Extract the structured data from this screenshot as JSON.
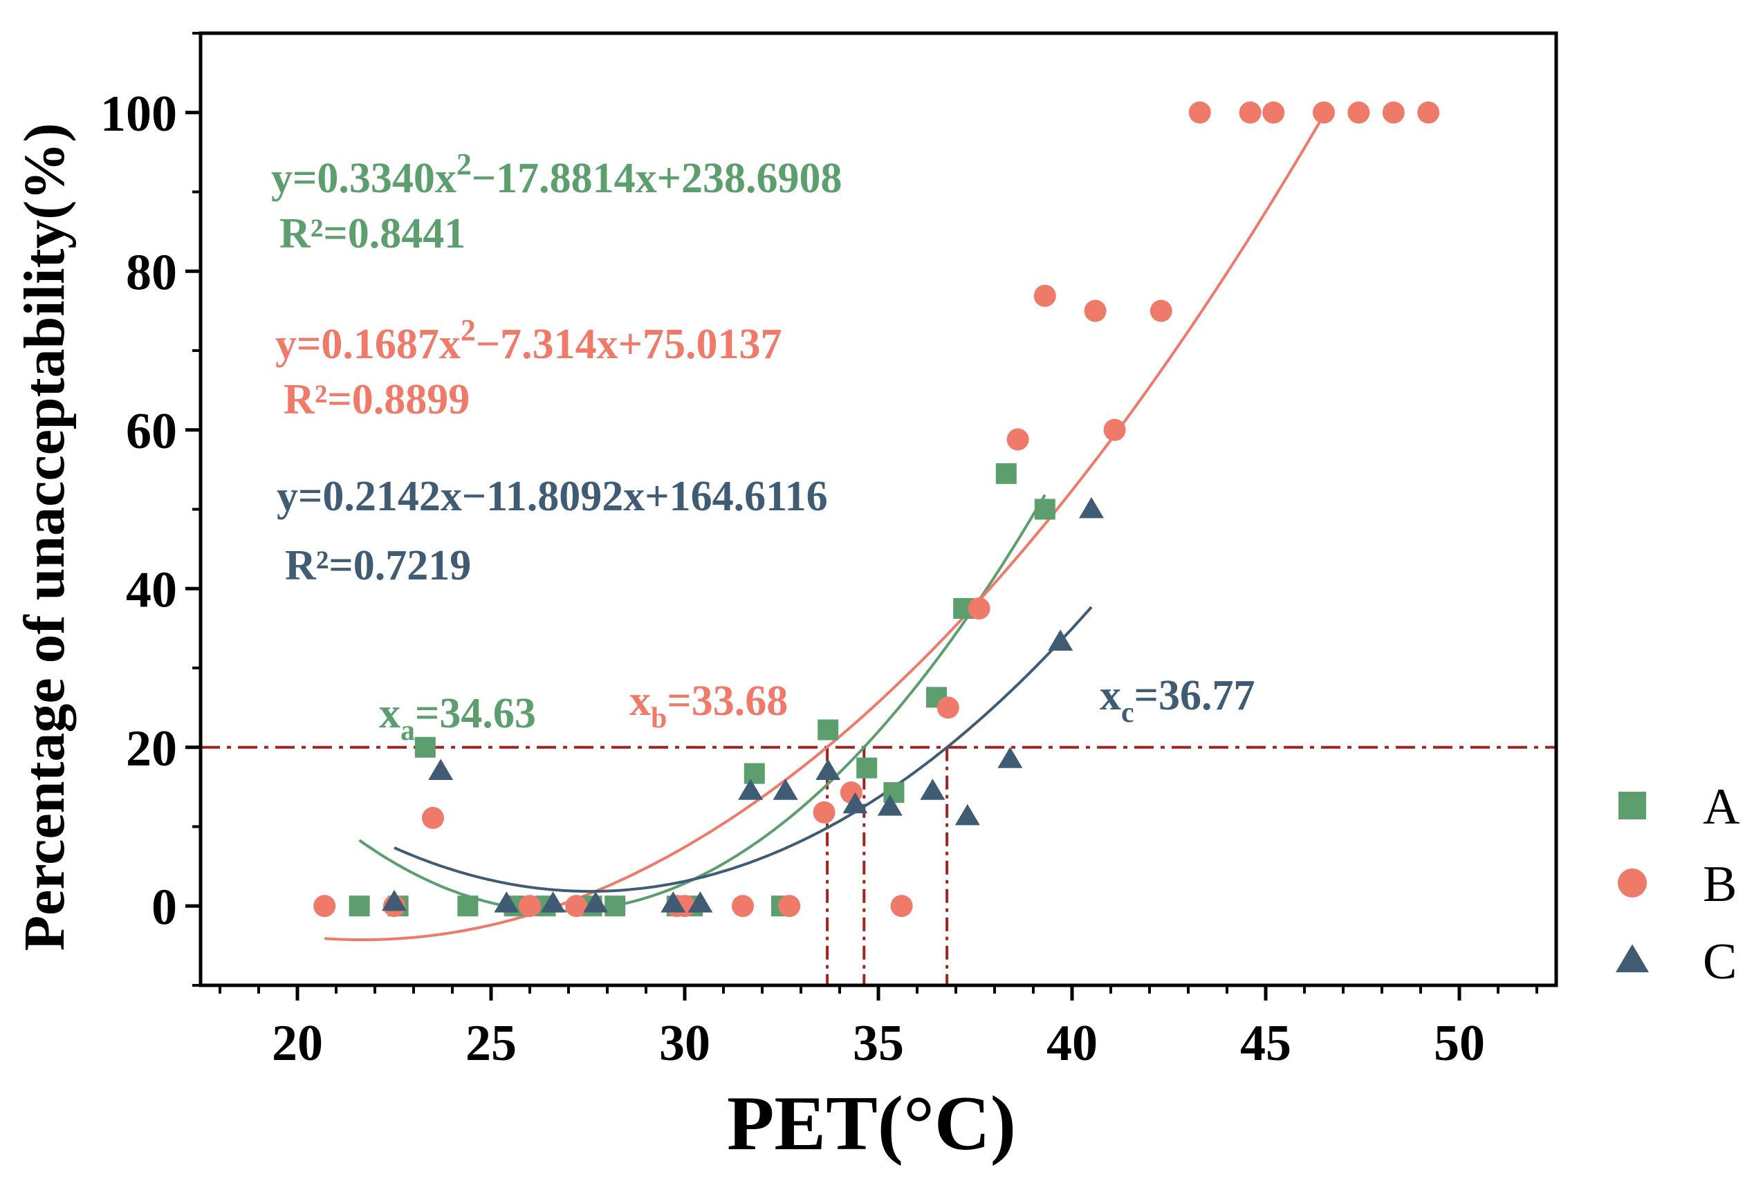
{
  "chart_data": {
    "type": "scatter",
    "title": "",
    "xlabel": "PET(°C)",
    "ylabel": "Percentage of unacceptability(%)",
    "xlim": [
      17.5,
      52.5
    ],
    "ylim": [
      -10,
      110
    ],
    "xticks": [
      20,
      25,
      30,
      35,
      40,
      45,
      50
    ],
    "xtick_labels": [
      "20",
      "25",
      "30",
      "35",
      "40",
      "45",
      "50"
    ],
    "yticks": [
      0,
      20,
      40,
      60,
      80,
      100
    ],
    "ytick_labels": [
      "0",
      "20",
      "40",
      "60",
      "80",
      "100"
    ],
    "threshold": {
      "y": 20,
      "color": "#a3231f",
      "style": "dash-dot"
    },
    "legend_position": "right",
    "series": [
      {
        "name": "A",
        "marker": "square",
        "color": "#5c9e6e",
        "points": [
          [
            21.6,
            0
          ],
          [
            22.6,
            0
          ],
          [
            23.3,
            20
          ],
          [
            24.4,
            0
          ],
          [
            25.6,
            0
          ],
          [
            26.4,
            0
          ],
          [
            27.6,
            0
          ],
          [
            28.2,
            0
          ],
          [
            29.8,
            0
          ],
          [
            30.2,
            0
          ],
          [
            31.8,
            16.7
          ],
          [
            32.5,
            0
          ],
          [
            33.7,
            22.2
          ],
          [
            34.7,
            17.4
          ],
          [
            35.4,
            14.3
          ],
          [
            36.5,
            26.3
          ],
          [
            37.2,
            37.5
          ],
          [
            38.3,
            54.5
          ],
          [
            39.3,
            50
          ]
        ],
        "fit": {
          "x_range": [
            21.6,
            39.3
          ],
          "coef": [
            238.6908,
            -17.8814,
            0.334
          ]
        },
        "equation": "y=0.3340x",
        "equation_sup": "2",
        "equation_rest": "−17.8814x+238.6908",
        "r2": "R²=0.8441",
        "threshold_label_main": "x",
        "threshold_label_sub": "a",
        "threshold_label_rest": "=34.63",
        "threshold_x": 34.63
      },
      {
        "name": "B",
        "marker": "circle",
        "color": "#f07a6a",
        "points": [
          [
            20.7,
            0
          ],
          [
            22.5,
            0
          ],
          [
            23.5,
            11.1
          ],
          [
            26.0,
            0
          ],
          [
            27.2,
            0
          ],
          [
            29.8,
            0
          ],
          [
            30.0,
            0
          ],
          [
            31.5,
            0
          ],
          [
            32.7,
            0
          ],
          [
            33.6,
            11.8
          ],
          [
            34.3,
            14.3
          ],
          [
            35.6,
            0
          ],
          [
            36.8,
            25
          ],
          [
            37.6,
            37.5
          ],
          [
            38.6,
            58.8
          ],
          [
            39.3,
            76.9
          ],
          [
            40.6,
            75
          ],
          [
            41.1,
            60
          ],
          [
            42.3,
            75
          ],
          [
            43.3,
            100
          ],
          [
            44.6,
            100
          ],
          [
            45.2,
            100
          ],
          [
            46.5,
            100
          ],
          [
            47.4,
            100
          ],
          [
            48.3,
            100
          ],
          [
            49.2,
            100
          ]
        ],
        "fit": {
          "x_range": [
            20.7,
            46.4
          ],
          "coef": [
            75.0137,
            -7.314,
            0.1687
          ]
        },
        "equation": "y=0.1687x",
        "equation_sup": "2",
        "equation_rest": "−7.314x+75.0137",
        "r2": "R²=0.8899",
        "threshold_label_main": "x",
        "threshold_label_sub": "b",
        "threshold_label_rest": "=33.68",
        "threshold_x": 33.68
      },
      {
        "name": "C",
        "marker": "triangle",
        "color": "#3f5c74",
        "points": [
          [
            22.5,
            0.5
          ],
          [
            23.7,
            17
          ],
          [
            25.4,
            0.3
          ],
          [
            26.6,
            0.3
          ],
          [
            27.7,
            0.3
          ],
          [
            29.7,
            0.3
          ],
          [
            30.4,
            0.3
          ],
          [
            31.7,
            14.5
          ],
          [
            32.6,
            14.5
          ],
          [
            33.7,
            17
          ],
          [
            34.4,
            12.8
          ],
          [
            35.3,
            12.5
          ],
          [
            36.4,
            14.5
          ],
          [
            37.3,
            11.3
          ],
          [
            38.4,
            18.5
          ],
          [
            39.7,
            33.3
          ],
          [
            40.5,
            50
          ]
        ],
        "fit": {
          "x_range": [
            22.5,
            40.5
          ],
          "coef": [
            164.6116,
            -11.8092,
            0.2142
          ]
        },
        "equation": "y=0.2142x−11.8092x+164.6116",
        "r2": "R²=0.7219",
        "threshold_label_main": "x",
        "threshold_label_sub": "c",
        "threshold_label_rest": "=36.77",
        "threshold_x": 36.77
      }
    ]
  }
}
